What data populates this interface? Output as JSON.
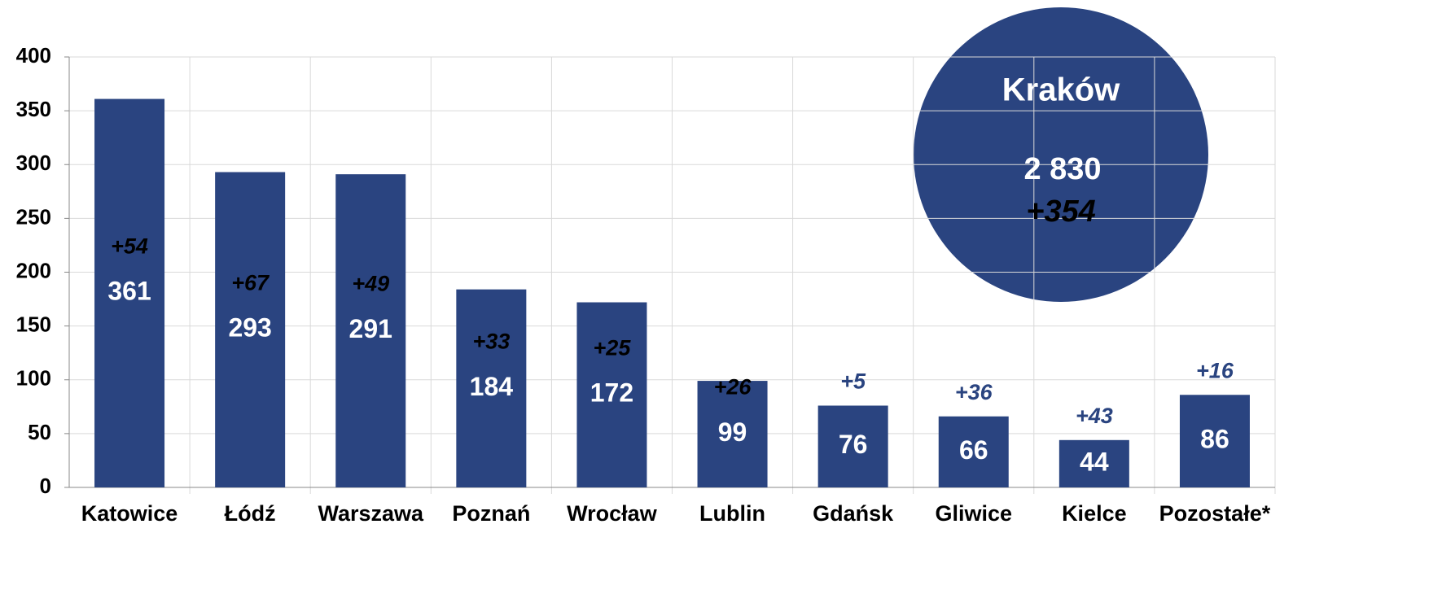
{
  "chart_data": {
    "type": "bar",
    "categories": [
      "Katowice",
      "Łódź",
      "Warszawa",
      "Poznań",
      "Wrocław",
      "Lublin",
      "Gdańsk",
      "Gliwice",
      "Kielce",
      "Pozostałe*"
    ],
    "values": [
      361,
      293,
      291,
      184,
      172,
      99,
      76,
      66,
      44,
      86
    ],
    "change_labels": [
      "+54",
      "+67",
      "+49",
      "+33",
      "+25",
      "+26",
      "+5",
      "+36",
      "+43",
      "+16"
    ],
    "color": "#2a4480",
    "ylim": [
      0,
      400
    ],
    "yticks": [
      0,
      50,
      100,
      150,
      200,
      250,
      300,
      350,
      400
    ],
    "grid": true,
    "callout": {
      "title": "Kraków",
      "value": 2830,
      "value_label": "2 830",
      "change_label": "+354"
    }
  }
}
